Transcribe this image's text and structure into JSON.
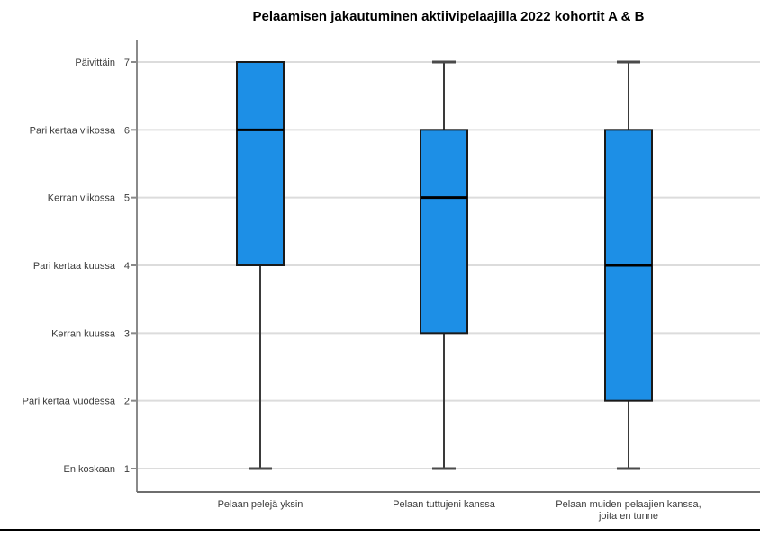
{
  "page": {
    "background_color": "#ffffff",
    "bottom_rule_color": "#000000"
  },
  "chart_data": {
    "type": "boxplot",
    "title": "Pelaamisen jakautuminen aktiivipelaajilla 2022 kohortit A & B",
    "xlabel": "",
    "ylabel": "",
    "ylim": [
      1,
      7
    ],
    "grid": true,
    "legend": false,
    "y_axis": {
      "min": 1,
      "max": 7,
      "ticks": [
        {
          "value": 7,
          "label": "Päivittäin"
        },
        {
          "value": 6,
          "label": "Pari kertaa viikossa"
        },
        {
          "value": 5,
          "label": "Kerran viikossa"
        },
        {
          "value": 4,
          "label": "Pari kertaa kuussa"
        },
        {
          "value": 3,
          "label": "Kerran kuussa"
        },
        {
          "value": 2,
          "label": "Pari kertaa vuodessa"
        },
        {
          "value": 1,
          "label": "En koskaan"
        }
      ]
    },
    "categories": [
      "Pelaan pelejä yksin",
      "Pelaan tuttujeni kanssa",
      "Pelaan muiden pelaajien kanssa, joita en tunne"
    ],
    "category_label_lines": [
      [
        "Pelaan pelejä yksin"
      ],
      [
        "Pelaan tuttujeni kanssa"
      ],
      [
        "Pelaan muiden pelaajien kanssa,",
        "joita en tunne"
      ]
    ],
    "series": [
      {
        "category": "Pelaan pelejä yksin",
        "whisker_low": 1,
        "q1": 4,
        "median": 6,
        "q3": 7,
        "whisker_high": 7
      },
      {
        "category": "Pelaan tuttujeni kanssa",
        "whisker_low": 1,
        "q1": 3,
        "median": 5,
        "q3": 6,
        "whisker_high": 7
      },
      {
        "category": "Pelaan muiden pelaajien kanssa, joita en tunne",
        "whisker_low": 1,
        "q1": 2,
        "median": 4,
        "q3": 6,
        "whisker_high": 7
      }
    ],
    "colors": {
      "box_fill": "#1d8fe6",
      "box_border": "#1a1a1a",
      "median_line": "#000000",
      "whisker_line": "#3a3a3a",
      "whisker_cap": "#4a4a4a",
      "grid_line": "#dcdcdc",
      "axis_line": "#8a8a8a",
      "bottom_axis_line": "#6e6e6e",
      "tick_label": "#3b3b3b"
    }
  }
}
